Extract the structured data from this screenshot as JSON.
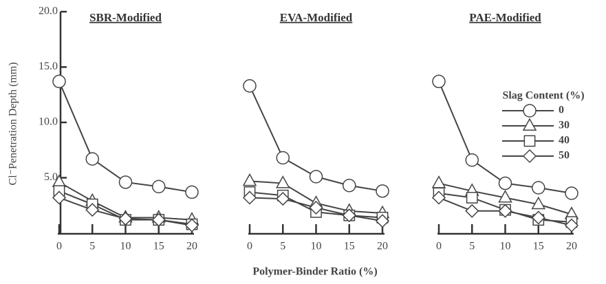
{
  "chart_data": {
    "type": "line",
    "ylabel": "Cl⁻Penetration Depth (mm)",
    "xlabel": "Polymer-Binder Ratio (%)",
    "legend_title": "Slag Content (%)",
    "legend": "right",
    "ylim": [
      0,
      20
    ],
    "yticks": [
      {
        "value": 20,
        "label": "20.0"
      },
      {
        "value": 15,
        "label": "15.0"
      },
      {
        "value": 10,
        "label": "10.0"
      },
      {
        "value": 5,
        "label": "5.0"
      }
    ],
    "xlim": [
      0,
      20
    ],
    "xticks": [
      0,
      5,
      10,
      15,
      20
    ],
    "x": [
      0,
      5,
      10,
      15,
      20
    ],
    "color": "#444",
    "series": [
      {
        "name": "0",
        "marker": "circle"
      },
      {
        "name": "30",
        "marker": "triangle"
      },
      {
        "name": "40",
        "marker": "square"
      },
      {
        "name": "50",
        "marker": "diamond"
      }
    ],
    "panels": [
      {
        "title": "SBR-Modified",
        "values": [
          [
            13.7,
            6.7,
            4.6,
            4.2,
            3.7
          ],
          [
            4.6,
            2.9,
            1.4,
            1.4,
            1.2
          ],
          [
            3.8,
            2.6,
            1.2,
            1.2,
            0.8
          ],
          [
            3.2,
            2.1,
            1.3,
            1.2,
            0.7
          ]
        ]
      },
      {
        "title": "EVA-Modified",
        "values": [
          [
            13.3,
            6.8,
            5.1,
            4.3,
            3.8
          ],
          [
            4.7,
            4.5,
            2.7,
            2.0,
            1.8
          ],
          [
            3.7,
            3.4,
            1.9,
            1.6,
            1.4
          ],
          [
            3.2,
            3.1,
            2.3,
            1.6,
            1.1
          ]
        ]
      },
      {
        "title": "PAE-Modified",
        "values": [
          [
            13.7,
            6.6,
            4.5,
            4.1,
            3.6
          ],
          [
            4.5,
            3.8,
            3.2,
            2.6,
            1.7
          ],
          [
            3.6,
            3.2,
            2.1,
            1.2,
            1.0
          ],
          [
            3.2,
            2.0,
            2.0,
            1.4,
            0.7
          ]
        ]
      }
    ]
  }
}
